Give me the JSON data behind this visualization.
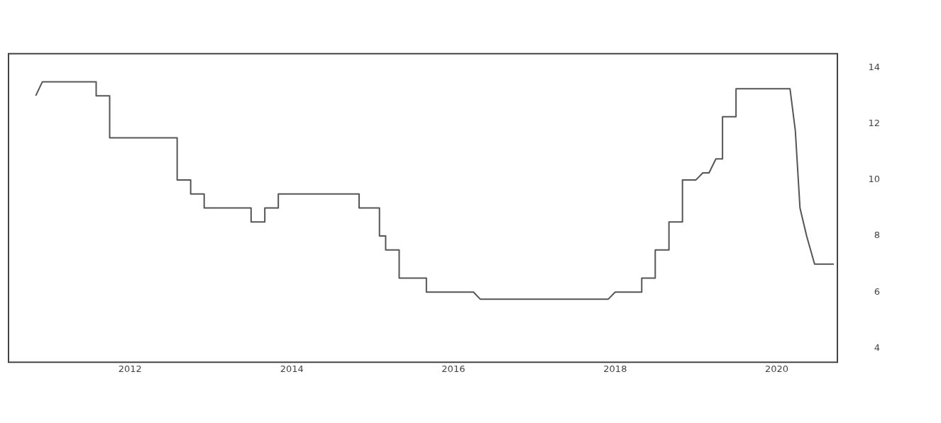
{
  "chart_data": {
    "type": "line",
    "x": [
      "2010-11",
      "2010-12",
      "2011-08",
      "2011-08",
      "2011-10",
      "2011-10",
      "2012-08",
      "2012-08",
      "2012-10",
      "2012-10",
      "2012-12",
      "2012-12",
      "2013-07",
      "2013-07",
      "2013-09",
      "2013-09",
      "2013-11",
      "2013-11",
      "2014-11",
      "2014-11",
      "2015-02",
      "2015-02",
      "2015-03",
      "2015-03",
      "2015-05",
      "2015-05",
      "2015-09",
      "2015-09",
      "2016-04",
      "2016-05",
      "2017-12",
      "2018-01",
      "2018-05",
      "2018-05",
      "2018-07",
      "2018-07",
      "2018-09",
      "2018-09",
      "2018-11",
      "2018-11",
      "2019-01",
      "2019-02",
      "2019-03",
      "2019-04",
      "2019-05",
      "2019-05",
      "2019-07",
      "2019-07",
      "2020-03-01",
      "2020-03-25",
      "2020-04-15",
      "2020-05-15",
      "2020-06-20",
      "2020-09-15"
    ],
    "series": [
      {
        "color": "#555555",
        "values": [
          13.0,
          13.5,
          13.5,
          13.0,
          13.0,
          11.5,
          11.5,
          10.0,
          10.0,
          9.5,
          9.5,
          9.0,
          9.0,
          8.5,
          8.5,
          9.0,
          9.0,
          9.5,
          9.5,
          9.0,
          9.0,
          8.0,
          8.0,
          7.5,
          7.5,
          6.5,
          6.5,
          6.0,
          6.0,
          5.75,
          5.75,
          6.0,
          6.0,
          6.5,
          6.5,
          7.5,
          7.5,
          8.5,
          8.5,
          10.0,
          10.0,
          10.25,
          10.25,
          10.75,
          10.75,
          12.25,
          12.25,
          13.25,
          13.25,
          11.75,
          9.0,
          8.0,
          7.0,
          7.0
        ]
      }
    ],
    "xlim": [
      "2010-07",
      "2020-10"
    ],
    "xticks": [
      "2012",
      "2014",
      "2016",
      "2018",
      "2020"
    ],
    "ylim": [
      3.5,
      14.5
    ],
    "yticks": [
      4,
      6,
      8,
      10,
      12,
      14
    ],
    "grid": false,
    "legend": false,
    "marker": "none",
    "line_style": "solid"
  }
}
